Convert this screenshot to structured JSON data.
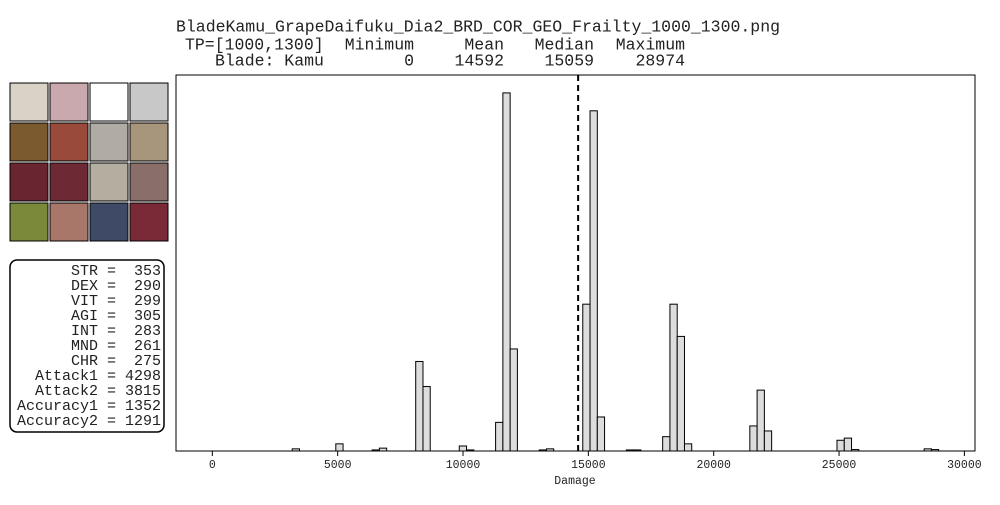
{
  "chart_data": {
    "type": "histogram",
    "title": "BladeKamu_GrapeDaifuku_Dia2_BRD_COR_GEO_Frailty_1000_1300.png",
    "summary": {
      "row_labels": [
        "TP=[1000,1300]",
        "Blade: Kamu"
      ],
      "columns": [
        "Minimum",
        "Mean",
        "Median",
        "Maximum"
      ],
      "values": [
        0,
        14592,
        15059,
        28974
      ]
    },
    "xlabel": "Damage",
    "color": "#dddddd",
    "bins": [
      0,
      290,
      579,
      869,
      1159,
      1449,
      1738,
      2028,
      2318,
      2608,
      2897,
      3187,
      3477,
      3767,
      4056,
      4346,
      4636,
      4926,
      5215,
      5505,
      5795,
      6085,
      6374,
      6664,
      6954,
      7244,
      7533,
      7823,
      8113,
      8403,
      8692,
      8982,
      9272,
      9562,
      9851,
      10141,
      10431,
      10721,
      11010,
      11300,
      11590,
      11880,
      12169,
      12459,
      12749,
      13039,
      13328,
      13618,
      13908,
      14198,
      14487,
      14777,
      15067,
      15357,
      15646,
      15936,
      16226,
      16516,
      16805,
      17095,
      17385,
      17675,
      17964,
      18254,
      18544,
      18834,
      19123,
      19413,
      19703,
      19993,
      20282,
      20572,
      20862,
      21152,
      21441,
      21731,
      22021,
      22311,
      22600,
      22890,
      23180,
      23470,
      23759,
      24049,
      24339,
      24629,
      24918,
      25208,
      25498,
      25788,
      26077,
      26367,
      26657,
      26947,
      27236,
      27526,
      27816,
      28106,
      28395,
      28685,
      28974
    ],
    "counts": [
      0,
      0,
      0,
      0,
      0,
      0,
      0,
      0,
      0,
      0,
      0,
      0.6,
      0,
      0,
      0,
      0,
      0,
      2,
      0,
      0,
      0,
      0,
      0.3,
      0.8,
      0,
      0,
      0,
      0,
      25,
      18,
      0,
      0,
      0,
      0,
      1.4,
      0.3,
      0,
      0,
      0,
      8,
      100,
      28.5,
      0,
      0,
      0,
      0.3,
      0.6,
      0,
      0,
      0,
      0,
      41,
      95,
      9.5,
      0,
      0,
      0,
      0.3,
      0.3,
      0,
      0,
      0,
      4,
      41,
      32,
      2,
      0,
      0,
      0,
      0,
      0,
      0,
      0,
      0,
      7,
      17,
      5.6,
      0,
      0,
      0,
      0,
      0,
      0,
      0,
      0,
      0,
      3,
      3.6,
      0.4,
      0,
      0,
      0,
      0,
      0,
      0,
      0,
      0,
      0,
      0.6,
      0.4
    ],
    "xlim": [
      -1449,
      30423
    ],
    "xticks": [
      0,
      5000,
      10000,
      15000,
      20000,
      25000,
      30000
    ],
    "ylim": [
      0,
      105
    ]
  },
  "stats": [
    {
      "label": "STR",
      "value": 353
    },
    {
      "label": "DEX",
      "value": 290
    },
    {
      "label": "VIT",
      "value": 299
    },
    {
      "label": "AGI",
      "value": 305
    },
    {
      "label": "INT",
      "value": 283
    },
    {
      "label": "MND",
      "value": 261
    },
    {
      "label": "CHR",
      "value": 275
    },
    {
      "label": "Attack1",
      "value": 4298
    },
    {
      "label": "Attack2",
      "value": 3815
    },
    {
      "label": "Accuracy1",
      "value": 1352
    },
    {
      "label": "Accuracy2",
      "value": 1291
    }
  ],
  "separator": "="
}
